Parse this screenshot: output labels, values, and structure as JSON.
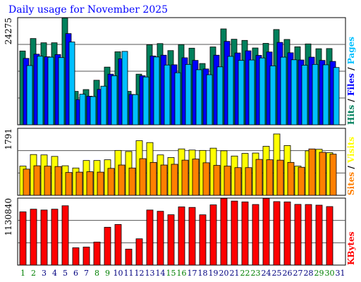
{
  "chart_data": {
    "type": "bar",
    "title": "Daily usage for November 2025",
    "colors": {
      "hits": "#00805c",
      "files": "#0000ff",
      "pages": "#00c0ff",
      "visits": "#ffff00",
      "sites": "#ff8000",
      "kbytes": "#ff0000",
      "title": "#0000ff",
      "weekday": "#000080",
      "weekend": "#008000"
    },
    "days": [
      "1",
      "2",
      "3",
      "4",
      "5",
      "6",
      "7",
      "8",
      "9",
      "10",
      "11",
      "12",
      "13",
      "14",
      "15",
      "16",
      "17",
      "18",
      "19",
      "20",
      "21",
      "22",
      "23",
      "24",
      "25",
      "26",
      "27",
      "28",
      "29",
      "30",
      "31"
    ],
    "weekend_days": [
      1,
      2,
      8,
      9,
      15,
      16,
      22,
      23,
      29,
      30
    ],
    "panels": [
      {
        "name": "hits-files-pages",
        "ymax": 24275,
        "ymax_label": "24275",
        "right_label_parts": [
          {
            "text": "Hits",
            "color": "#00805c"
          },
          {
            "text": " / ",
            "color": "#000000"
          },
          {
            "text": "Files",
            "color": "#0000ff"
          },
          {
            "text": " / ",
            "color": "#000000"
          },
          {
            "text": "Pages",
            "color": "#00c0ff"
          }
        ],
        "series": [
          {
            "name": "Hits",
            "color": "#00805c",
            "values": [
              16720,
              19540,
              18580,
              18580,
              24200,
              7570,
              7980,
              10090,
              13070,
              16540,
              7570,
              11470,
              18130,
              18400,
              16810,
              18170,
              17360,
              13880,
              17640,
              21720,
              19380,
              19120,
              17400,
              18450,
              21580,
              19330,
              17680,
              18320,
              17230,
              17270,
              0
            ]
          },
          {
            "name": "Files",
            "color": "#0000ff",
            "values": [
              15040,
              16000,
              15410,
              15910,
              20660,
              5710,
              6480,
              8020,
              11470,
              14950,
              6880,
              11110,
              15590,
              15770,
              13590,
              15180,
              14590,
              12650,
              15770,
              18900,
              16270,
              16760,
              15730,
              16490,
              18670,
              16310,
              14680,
              15320,
              14590,
              14360,
              0
            ]
          },
          {
            "name": "Pages",
            "color": "#00c0ff",
            "values": [
              13420,
              15540,
              15320,
              15220,
              18760,
              6930,
              6390,
              8750,
              11110,
              16630,
              6840,
              10830,
              15360,
              13540,
              11790,
              13680,
              12470,
              11340,
              13130,
              15500,
              14590,
              14680,
              15140,
              13360,
              15320,
              14730,
              13500,
              13680,
              13590,
              12980,
              0
            ]
          }
        ]
      },
      {
        "name": "visits-sites",
        "ymax": 1791,
        "ymax_label": "1791",
        "right_label_parts": [
          {
            "text": "Sites",
            "color": "#ff8000"
          },
          {
            "text": " / ",
            "color": "#000000"
          },
          {
            "text": "Visits",
            "color": "#ffff00"
          }
        ],
        "series": [
          {
            "name": "Visits",
            "color": "#ffff00",
            "values": [
              780,
              1090,
              1080,
              1040,
              790,
              730,
              930,
              930,
              950,
              1200,
              1170,
              1460,
              1410,
              1080,
              1010,
              1240,
              1210,
              1200,
              1260,
              1190,
              1050,
              1120,
              1130,
              1310,
              1640,
              1330,
              780,
              1190,
              1230,
              1140,
              0
            ]
          },
          {
            "name": "Sites",
            "color": "#ff8000",
            "values": [
              700,
              790,
              780,
              770,
              610,
              620,
              630,
              620,
              720,
              810,
              730,
              980,
              880,
              810,
              830,
              940,
              970,
              870,
              800,
              780,
              740,
              740,
              960,
              950,
              940,
              880,
              750,
              1240,
              1150,
              1100,
              0
            ]
          }
        ]
      },
      {
        "name": "kbytes",
        "ymax": 1130840,
        "ymax_label": "1130840",
        "right_label_parts": [
          {
            "text": "KBytes",
            "color": "#ff0000"
          }
        ],
        "series": [
          {
            "name": "KBytes",
            "color": "#ff0000",
            "values": [
              899000,
              944000,
              930000,
              944000,
              1002000,
              293000,
              305000,
              389000,
              639000,
              686000,
              270000,
              444000,
              930000,
              909000,
              850000,
              983000,
              974000,
              849000,
              1017000,
              1126000,
              1081000,
              1067000,
              1023000,
              1126000,
              1072000,
              1067000,
              1025000,
              1023000,
              1012000,
              988000,
              0
            ]
          }
        ]
      }
    ]
  }
}
